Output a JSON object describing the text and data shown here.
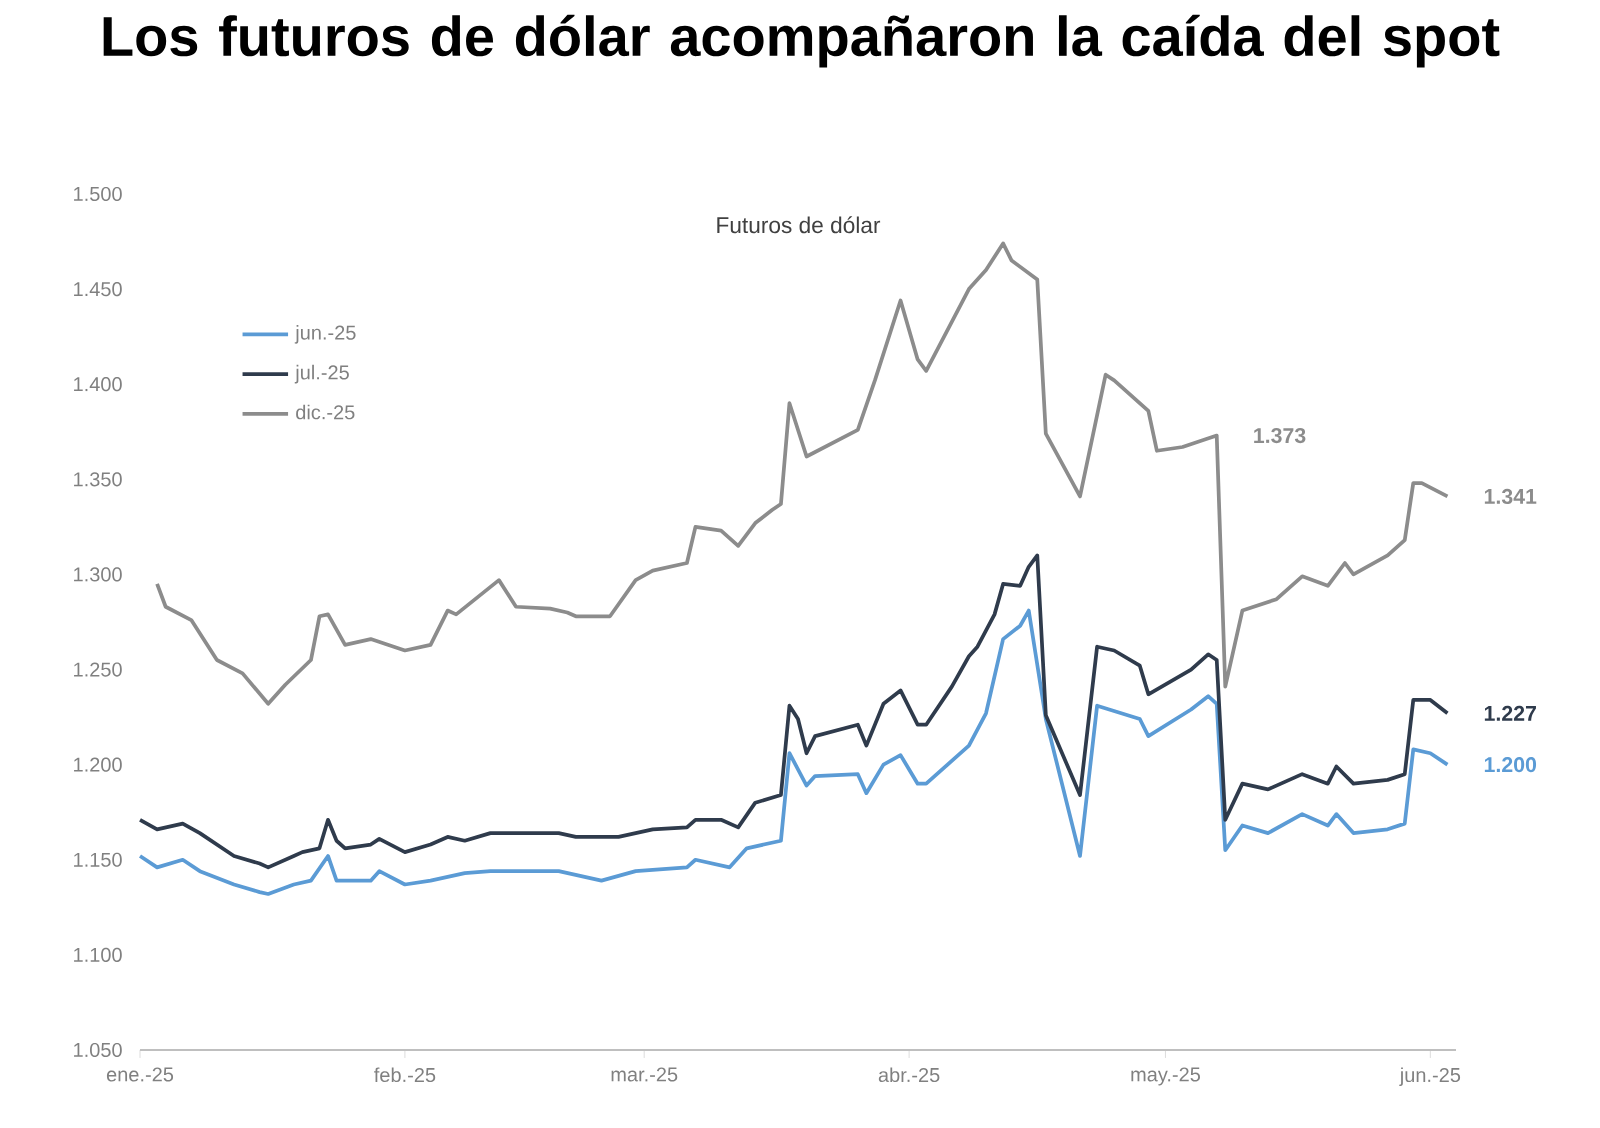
{
  "chart_data": {
    "type": "line",
    "title": "Los futuros de dólar acompañaron la caída del spot",
    "subtitle": "Futuros de dólar",
    "legend": "top left",
    "xlim": [
      "2025-01-01",
      "2025-06-04"
    ],
    "xticks": [
      {
        "value": "2025-01-01",
        "label": "ene.-25"
      },
      {
        "value": "2025-02-01",
        "label": "feb.-25"
      },
      {
        "value": "2025-03-01",
        "label": "mar.-25"
      },
      {
        "value": "2025-04-01",
        "label": "abr.-25"
      },
      {
        "value": "2025-05-01",
        "label": "may.-25"
      },
      {
        "value": "2025-06-01",
        "label": "jun.-25"
      }
    ],
    "ylim": [
      1050,
      1500
    ],
    "yticks": [
      {
        "value": 1050,
        "label": "1.050"
      },
      {
        "value": 1100,
        "label": "1.100"
      },
      {
        "value": 1150,
        "label": "1.150"
      },
      {
        "value": 1200,
        "label": "1.200"
      },
      {
        "value": 1250,
        "label": "1.250"
      },
      {
        "value": 1300,
        "label": "1.300"
      },
      {
        "value": 1350,
        "label": "1.350"
      },
      {
        "value": 1400,
        "label": "1.400"
      },
      {
        "value": 1450,
        "label": "1.450"
      },
      {
        "value": 1500,
        "label": "1.500"
      }
    ],
    "series": [
      {
        "name": "jun.-25",
        "color": "#5b9bd5",
        "x": [
          "2025-01-01",
          "2025-01-03",
          "2025-01-06",
          "2025-01-08",
          "2025-01-12",
          "2025-01-15",
          "2025-01-16",
          "2025-01-19",
          "2025-01-21",
          "2025-01-23",
          "2025-01-24",
          "2025-01-28",
          "2025-01-29",
          "2025-02-01",
          "2025-02-04",
          "2025-02-08",
          "2025-02-11",
          "2025-02-19",
          "2025-02-24",
          "2025-02-28",
          "2025-03-06",
          "2025-03-07",
          "2025-03-11",
          "2025-03-13",
          "2025-03-17",
          "2025-03-18",
          "2025-03-20",
          "2025-03-21",
          "2025-03-26",
          "2025-03-27",
          "2025-03-29",
          "2025-03-31",
          "2025-04-02",
          "2025-04-03",
          "2025-04-08",
          "2025-04-10",
          "2025-04-12",
          "2025-04-14",
          "2025-04-15",
          "2025-04-17",
          "2025-04-21",
          "2025-04-23",
          "2025-04-28",
          "2025-04-29",
          "2025-05-04",
          "2025-05-06",
          "2025-05-07",
          "2025-05-08",
          "2025-05-10",
          "2025-05-13",
          "2025-05-17",
          "2025-05-20",
          "2025-05-21",
          "2025-05-23",
          "2025-05-27",
          "2025-05-29",
          "2025-05-30",
          "2025-06-01",
          "2025-06-03"
        ],
        "values": [
          1152,
          1146,
          1150,
          1144,
          1137,
          1133,
          1132,
          1137,
          1139,
          1152,
          1139,
          1139,
          1144,
          1137,
          1139,
          1143,
          1144,
          1144,
          1139,
          1144,
          1146,
          1150,
          1146,
          1156,
          1160,
          1206,
          1189,
          1194,
          1195,
          1185,
          1200,
          1205,
          1190,
          1190,
          1210,
          1227,
          1266,
          1273,
          1281,
          1224,
          1152,
          1231,
          1224,
          1215,
          1229,
          1236,
          1232,
          1155,
          1168,
          1164,
          1174,
          1168,
          1174,
          1164,
          1166,
          1169,
          1208,
          1206,
          1200
        ]
      },
      {
        "name": "jul.-25",
        "color": "#2f3b4c",
        "x": [
          "2025-01-01",
          "2025-01-03",
          "2025-01-06",
          "2025-01-08",
          "2025-01-12",
          "2025-01-15",
          "2025-01-16",
          "2025-01-19",
          "2025-01-20",
          "2025-01-22",
          "2025-01-23",
          "2025-01-24",
          "2025-01-25",
          "2025-01-28",
          "2025-01-29",
          "2025-02-01",
          "2025-02-04",
          "2025-02-06",
          "2025-02-08",
          "2025-02-11",
          "2025-02-19",
          "2025-02-21",
          "2025-02-26",
          "2025-03-02",
          "2025-03-06",
          "2025-03-07",
          "2025-03-10",
          "2025-03-12",
          "2025-03-14",
          "2025-03-17",
          "2025-03-18",
          "2025-03-19",
          "2025-03-20",
          "2025-03-21",
          "2025-03-26",
          "2025-03-27",
          "2025-03-29",
          "2025-03-31",
          "2025-04-02",
          "2025-04-03",
          "2025-04-06",
          "2025-04-08",
          "2025-04-09",
          "2025-04-11",
          "2025-04-12",
          "2025-04-14",
          "2025-04-15",
          "2025-04-16",
          "2025-04-17",
          "2025-04-21",
          "2025-04-23",
          "2025-04-25",
          "2025-04-28",
          "2025-04-29",
          "2025-05-04",
          "2025-05-06",
          "2025-05-07",
          "2025-05-08",
          "2025-05-10",
          "2025-05-13",
          "2025-05-17",
          "2025-05-20",
          "2025-05-21",
          "2025-05-23",
          "2025-05-27",
          "2025-05-29",
          "2025-05-30",
          "2025-06-01",
          "2025-06-03"
        ],
        "values": [
          1171,
          1166,
          1169,
          1164,
          1152,
          1148,
          1146,
          1152,
          1154,
          1156,
          1171,
          1160,
          1156,
          1158,
          1161,
          1154,
          1158,
          1162,
          1160,
          1164,
          1164,
          1162,
          1162,
          1166,
          1167,
          1171,
          1171,
          1167,
          1180,
          1184,
          1231,
          1224,
          1206,
          1215,
          1221,
          1210,
          1232,
          1239,
          1221,
          1221,
          1241,
          1257,
          1262,
          1279,
          1295,
          1294,
          1304,
          1310,
          1226,
          1184,
          1262,
          1260,
          1252,
          1237,
          1250,
          1258,
          1255,
          1171,
          1190,
          1187,
          1195,
          1190,
          1199,
          1190,
          1192,
          1195,
          1234,
          1234,
          1227
        ]
      },
      {
        "name": "dic.-25",
        "color": "#8c8c8c",
        "x": [
          "2025-01-03",
          "2025-01-04",
          "2025-01-07",
          "2025-01-10",
          "2025-01-13",
          "2025-01-16",
          "2025-01-18",
          "2025-01-21",
          "2025-01-22",
          "2025-01-23",
          "2025-01-25",
          "2025-01-28",
          "2025-02-01",
          "2025-02-04",
          "2025-02-06",
          "2025-02-07",
          "2025-02-12",
          "2025-02-14",
          "2025-02-18",
          "2025-02-20",
          "2025-02-21",
          "2025-02-25",
          "2025-02-28",
          "2025-03-02",
          "2025-03-06",
          "2025-03-07",
          "2025-03-10",
          "2025-03-12",
          "2025-03-14",
          "2025-03-16",
          "2025-03-17",
          "2025-03-18",
          "2025-03-20",
          "2025-03-26",
          "2025-03-28",
          "2025-03-31",
          "2025-04-02",
          "2025-04-03",
          "2025-04-08",
          "2025-04-10",
          "2025-04-12",
          "2025-04-13",
          "2025-04-16",
          "2025-04-17",
          "2025-04-21",
          "2025-04-24",
          "2025-04-25",
          "2025-04-29",
          "2025-04-30",
          "2025-05-03",
          "2025-05-07",
          "2025-05-08",
          "2025-05-10",
          "2025-05-14",
          "2025-05-17",
          "2025-05-20",
          "2025-05-22",
          "2025-05-23",
          "2025-05-27",
          "2025-05-29",
          "2025-05-30",
          "2025-05-31",
          "2025-06-03"
        ],
        "values": [
          1295,
          1283,
          1276,
          1255,
          1248,
          1232,
          1242,
          1255,
          1278,
          1279,
          1263,
          1266,
          1260,
          1263,
          1281,
          1279,
          1297,
          1283,
          1282,
          1280,
          1278,
          1278,
          1297,
          1302,
          1306,
          1325,
          1323,
          1315,
          1327,
          1334,
          1337,
          1390,
          1362,
          1376,
          1402,
          1444,
          1413,
          1407,
          1450,
          1460,
          1474,
          1465,
          1455,
          1374,
          1341,
          1405,
          1402,
          1386,
          1365,
          1367,
          1373,
          1241,
          1281,
          1287,
          1299,
          1294,
          1306,
          1300,
          1310,
          1318,
          1348,
          1348,
          1341
        ]
      }
    ],
    "annotations": [
      {
        "text": "1.373",
        "x": "2025-05-07",
        "y": 1373
      },
      {
        "text": "1.341",
        "x": "2025-06-03",
        "y": 1341
      },
      {
        "text": "1.227",
        "x": "2025-06-03",
        "y": 1227
      },
      {
        "text": "1.200",
        "x": "2025-06-03",
        "y": 1200
      }
    ]
  }
}
